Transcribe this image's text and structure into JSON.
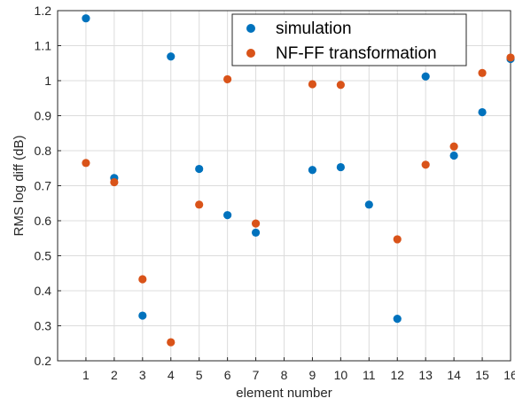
{
  "chart_data": {
    "type": "scatter",
    "title": "",
    "xlabel": "element number",
    "ylabel": "RMS log diff (dB)",
    "xlim": [
      0,
      16
    ],
    "ylim": [
      0.2,
      1.2
    ],
    "x_ticks": [
      "1",
      "2",
      "3",
      "4",
      "5",
      "6",
      "7",
      "8",
      "9",
      "10",
      "11",
      "12",
      "13",
      "14",
      "15",
      "16"
    ],
    "y_ticks": [
      "0.2",
      "0.3",
      "0.4",
      "0.5",
      "0.6",
      "0.7",
      "0.8",
      "0.9",
      "1",
      "1.1",
      "1.2"
    ],
    "grid": true,
    "legend_position": "top-right",
    "series": [
      {
        "name": "simulation",
        "color": "#0072bd",
        "points": [
          {
            "x": 1,
            "y": 1.178
          },
          {
            "x": 2,
            "y": 0.722
          },
          {
            "x": 3,
            "y": 0.329
          },
          {
            "x": 4,
            "y": 1.069
          },
          {
            "x": 5,
            "y": 0.748
          },
          {
            "x": 6,
            "y": 0.616
          },
          {
            "x": 7,
            "y": 0.566
          },
          {
            "x": 9,
            "y": 0.745
          },
          {
            "x": 10,
            "y": 0.753
          },
          {
            "x": 11,
            "y": 0.646
          },
          {
            "x": 12,
            "y": 0.32
          },
          {
            "x": 13,
            "y": 1.012
          },
          {
            "x": 14,
            "y": 0.786
          },
          {
            "x": 15,
            "y": 0.91
          },
          {
            "x": 16,
            "y": 1.062
          }
        ]
      },
      {
        "name": "NF-FF transformation",
        "color": "#d95319",
        "points": [
          {
            "x": 1,
            "y": 0.765
          },
          {
            "x": 2,
            "y": 0.71
          },
          {
            "x": 3,
            "y": 0.433
          },
          {
            "x": 4,
            "y": 0.253
          },
          {
            "x": 5,
            "y": 0.646
          },
          {
            "x": 6,
            "y": 1.004
          },
          {
            "x": 7,
            "y": 0.592
          },
          {
            "x": 9,
            "y": 0.99
          },
          {
            "x": 10,
            "y": 0.988
          },
          {
            "x": 12,
            "y": 0.547
          },
          {
            "x": 13,
            "y": 0.76
          },
          {
            "x": 14,
            "y": 0.812
          },
          {
            "x": 15,
            "y": 1.022
          },
          {
            "x": 16,
            "y": 1.066
          }
        ]
      }
    ]
  }
}
